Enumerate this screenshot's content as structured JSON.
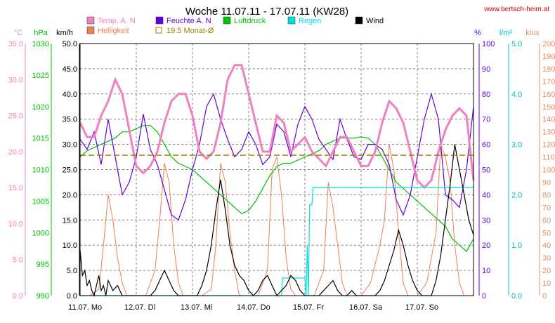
{
  "header": {
    "title": "Woche 11.07.11 - 17.07.11 (KW28)",
    "site": "www.bertsch-heim.at"
  },
  "colors": {
    "temp": "#f080c0",
    "hell": "#f08050",
    "feuchte": "#6000e0",
    "luftdruck": "#00c000",
    "regen": "#00e0e0",
    "wind": "#000000",
    "avg": "#a08000",
    "grid": "#808080",
    "axis_temp": "#f080c0",
    "axis_hpa": "#00c000",
    "axis_pct": "#6000e0",
    "axis_rain": "#00c0c0",
    "axis_klux": "#e09060"
  },
  "chart_data": {
    "type": "line",
    "title": "Woche 11.07.11 - 17.07.11 (KW28)",
    "x_labels": [
      "11.07. Mo",
      "12.07. Di",
      "13.07. Mi",
      "14.07. Do",
      "15.07. Fr",
      "16.07. Sa",
      "17.07. So"
    ],
    "x_hours": [
      0,
      24,
      48,
      72,
      96,
      120,
      144
    ],
    "x_range": [
      0,
      168
    ],
    "grid": true,
    "legend": [
      {
        "key": "temp",
        "label": "Temp. A. N",
        "color": "#f080c0"
      },
      {
        "key": "feuchte",
        "label": "Feuchte A. N",
        "color": "#6000e0"
      },
      {
        "key": "luftdruck",
        "label": "Luftdruck",
        "color": "#00c000"
      },
      {
        "key": "regen",
        "label": "Regen",
        "color": "#00e0e0"
      },
      {
        "key": "wind",
        "label": "Wind",
        "color": "#000000"
      },
      {
        "key": "hell",
        "label": "Helligkeit",
        "color": "#f08050"
      },
      {
        "key": "avg",
        "label": "19.5 Monat-Ø",
        "color": "#a08000"
      }
    ],
    "axes": [
      {
        "key": "temp",
        "unit": "°C",
        "min": 0,
        "max": 35,
        "step": 5,
        "format": 1,
        "side": "left",
        "color": "#f080c0"
      },
      {
        "key": "hpa",
        "unit": "hPa",
        "min": 990,
        "max": 1030,
        "step": 5,
        "format": 0,
        "side": "left",
        "color": "#00c000"
      },
      {
        "key": "wind",
        "unit": "km/h",
        "min": 0,
        "max": 50,
        "step": 5,
        "format": 1,
        "side": "left",
        "color": "#000000"
      },
      {
        "key": "pct",
        "unit": "%",
        "min": 0,
        "max": 100,
        "step": 10,
        "format": 0,
        "side": "right",
        "color": "#6000e0"
      },
      {
        "key": "rain",
        "unit": "l/m²",
        "min": 0,
        "max": 5,
        "step": 1,
        "format": 1,
        "side": "right",
        "color": "#00c0c0"
      },
      {
        "key": "klux",
        "unit": "klux",
        "min": 0,
        "max": 200,
        "step": 10,
        "format": 0,
        "side": "right",
        "color": "#e09060"
      }
    ],
    "series": [
      {
        "name": "Temp. A. N",
        "axis": "temp",
        "color": "#f080c0",
        "x": [
          0,
          3,
          6,
          9,
          12,
          15,
          18,
          21,
          24,
          27,
          30,
          33,
          36,
          39,
          42,
          45,
          48,
          51,
          54,
          57,
          60,
          63,
          66,
          69,
          72,
          75,
          78,
          81,
          84,
          87,
          90,
          93,
          96,
          99,
          102,
          105,
          108,
          111,
          114,
          117,
          120,
          123,
          126,
          129,
          132,
          135,
          138,
          141,
          144,
          147,
          150,
          153,
          156,
          159,
          162,
          165,
          168
        ],
        "y": [
          24,
          22,
          22,
          25,
          27,
          30,
          28,
          23,
          18,
          17,
          18,
          20,
          24,
          27,
          28,
          28,
          25,
          20,
          19,
          20,
          24,
          30,
          32,
          32,
          28,
          24,
          20,
          20,
          25,
          24,
          20,
          21,
          22,
          20,
          19,
          18,
          20,
          22,
          22,
          20,
          18,
          18,
          20,
          24,
          27,
          26,
          24,
          20,
          16,
          15,
          16,
          20,
          23,
          25,
          26,
          25,
          16
        ]
      },
      {
        "name": "Feuchte A. N",
        "axis": "pct",
        "color": "#6000e0",
        "x": [
          0,
          3,
          6,
          9,
          12,
          15,
          18,
          21,
          24,
          27,
          30,
          33,
          36,
          39,
          42,
          45,
          48,
          51,
          54,
          57,
          60,
          63,
          66,
          69,
          72,
          75,
          78,
          81,
          84,
          87,
          90,
          93,
          96,
          99,
          102,
          105,
          108,
          111,
          114,
          117,
          120,
          123,
          126,
          129,
          132,
          135,
          138,
          141,
          144,
          147,
          150,
          153,
          156,
          159,
          162,
          165,
          168
        ],
        "y": [
          62,
          58,
          65,
          52,
          70,
          55,
          40,
          45,
          55,
          72,
          58,
          52,
          42,
          32,
          30,
          38,
          50,
          60,
          75,
          80,
          70,
          62,
          55,
          58,
          65,
          60,
          52,
          55,
          68,
          65,
          55,
          68,
          75,
          70,
          62,
          58,
          54,
          70,
          62,
          55,
          54,
          60,
          60,
          58,
          52,
          38,
          32,
          40,
          55,
          70,
          80,
          70,
          40,
          38,
          35,
          50,
          75
        ]
      },
      {
        "name": "Luftdruck",
        "axis": "hpa",
        "color": "#00c000",
        "x": [
          0,
          3,
          6,
          9,
          12,
          15,
          18,
          21,
          24,
          27,
          30,
          33,
          36,
          39,
          42,
          45,
          48,
          51,
          54,
          57,
          60,
          63,
          66,
          69,
          72,
          75,
          78,
          81,
          84,
          87,
          90,
          93,
          96,
          99,
          102,
          105,
          108,
          111,
          114,
          117,
          120,
          123,
          126,
          129,
          132,
          135,
          138,
          141,
          144,
          147,
          150,
          153,
          156,
          159,
          162,
          165,
          168
        ],
        "y": [
          1012,
          1013,
          1013.5,
          1014,
          1014.5,
          1015,
          1016,
          1016,
          1016.5,
          1017,
          1017,
          1016,
          1014,
          1012,
          1011,
          1010.5,
          1010,
          1009,
          1008,
          1007,
          1006,
          1005,
          1004,
          1003,
          1003.5,
          1005,
          1007,
          1009,
          1010.5,
          1011,
          1011,
          1011.5,
          1012,
          1012.5,
          1013,
          1014,
          1014.5,
          1015,
          1015,
          1015,
          1015.2,
          1015,
          1014,
          1012,
          1010,
          1008,
          1007,
          1006,
          1005,
          1004,
          1003,
          1002,
          1001,
          999,
          998,
          997,
          999
        ]
      },
      {
        "name": "Regen",
        "axis": "rain",
        "color": "#00e0e0",
        "x": [
          0,
          86,
          86.5,
          96,
          96.5,
          97,
          97.5,
          98,
          99,
          99.5,
          120,
          121,
          131,
          132,
          150,
          151,
          168
        ],
        "y": [
          0,
          0,
          0.35,
          0.35,
          0,
          1.0,
          0,
          1.8,
          1.8,
          2.15,
          2.15,
          2.15,
          2.15,
          2.15,
          2.15,
          2.15,
          2.15
        ]
      },
      {
        "name": "Wind",
        "axis": "wind",
        "color": "#000000",
        "x": [
          0,
          1,
          2,
          3,
          4,
          5,
          6,
          7,
          8,
          9,
          10,
          11,
          12,
          14,
          16,
          18,
          20,
          22,
          24,
          26,
          28,
          30,
          32,
          34,
          36,
          38,
          40,
          42,
          44,
          46,
          48,
          50,
          52,
          54,
          56,
          58,
          60,
          62,
          64,
          66,
          68,
          70,
          72,
          74,
          76,
          78,
          80,
          82,
          84,
          86,
          88,
          90,
          92,
          94,
          96,
          98,
          100,
          102,
          104,
          106,
          108,
          110,
          112,
          114,
          116,
          118,
          120,
          122,
          124,
          126,
          128,
          130,
          132,
          134,
          136,
          138,
          140,
          142,
          144,
          146,
          148,
          150,
          152,
          154,
          156,
          158,
          160,
          162,
          164,
          166,
          168
        ],
        "y": [
          9,
          4,
          5,
          2,
          3,
          1,
          0,
          2,
          4,
          1,
          2,
          0,
          3,
          1,
          2,
          0,
          0,
          0,
          0,
          0,
          0,
          0,
          1,
          3,
          5,
          3,
          1,
          0,
          0,
          0,
          0,
          0,
          2,
          5,
          10,
          17,
          23,
          17,
          10,
          6,
          4,
          3,
          1,
          0,
          1,
          3,
          4,
          2,
          0,
          1,
          2,
          4,
          3,
          1,
          0,
          0,
          0,
          0,
          1,
          2,
          3,
          1,
          0,
          0,
          1,
          0,
          0,
          0,
          0,
          0,
          1,
          3,
          6,
          9,
          13,
          10,
          6,
          3,
          1,
          0,
          0,
          0,
          3,
          8,
          15,
          22,
          30,
          25,
          20,
          15,
          12
        ]
      },
      {
        "name": "Helligkeit",
        "axis": "klux",
        "color": "#f08050",
        "x": [
          0,
          4,
          8,
          10,
          12,
          14,
          16,
          18,
          20,
          24,
          28,
          32,
          34,
          36,
          38,
          40,
          42,
          44,
          48,
          52,
          56,
          58,
          60,
          62,
          64,
          66,
          68,
          72,
          76,
          80,
          82,
          84,
          86,
          88,
          90,
          92,
          96,
          100,
          104,
          106,
          108,
          110,
          112,
          114,
          116,
          120,
          124,
          128,
          130,
          132,
          134,
          136,
          138,
          140,
          144,
          148,
          152,
          154,
          156,
          158,
          160,
          162,
          164,
          168
        ],
        "y": [
          0,
          0,
          5,
          40,
          80,
          60,
          30,
          10,
          0,
          0,
          0,
          20,
          60,
          105,
          90,
          40,
          10,
          0,
          0,
          0,
          5,
          40,
          105,
          90,
          50,
          20,
          0,
          0,
          0,
          20,
          100,
          110,
          80,
          30,
          5,
          0,
          0,
          0,
          20,
          90,
          70,
          40,
          10,
          0,
          0,
          0,
          10,
          40,
          60,
          120,
          100,
          50,
          10,
          0,
          0,
          10,
          50,
          120,
          110,
          90,
          40,
          10,
          0,
          0
        ]
      },
      {
        "name": "19.5 Monat-Ø",
        "axis": "temp",
        "color": "#a08000",
        "x": [
          0,
          168
        ],
        "y": [
          19.5,
          19.5
        ]
      }
    ]
  }
}
